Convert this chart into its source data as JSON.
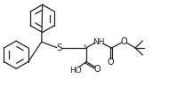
{
  "bg_color": "#ffffff",
  "line_color": "#222222",
  "figsize": [
    1.9,
    1.07
  ],
  "dpi": 100,
  "xlim": [
    0,
    190
  ],
  "ylim": [
    0,
    107
  ]
}
